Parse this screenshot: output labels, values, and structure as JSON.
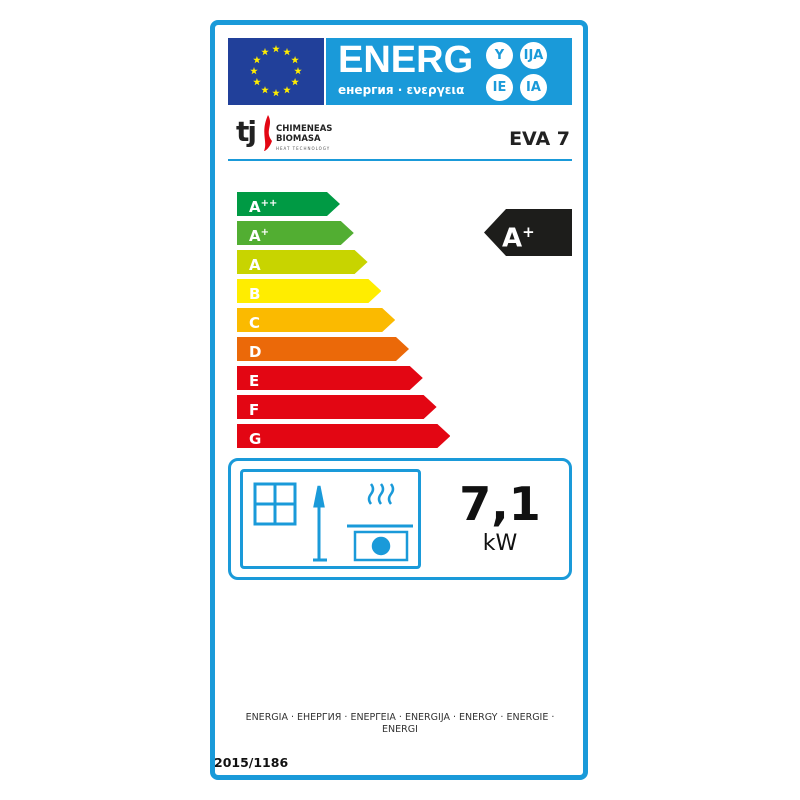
{
  "header": {
    "energy_word": "ENERG",
    "energy_subtitle": "енергия · ενεργεια",
    "suffixes": [
      "Y",
      "IJA",
      "IE",
      "IA"
    ],
    "brand_color": "#1a9ad9"
  },
  "supplier": {
    "logo_text": [
      "tj",
      "CHIMENEAS",
      "BIOMASA",
      "HEAT TECHNOLOGY"
    ],
    "model": "EVA 7"
  },
  "scale": [
    {
      "cls": "A",
      "sup": "++",
      "color": "#009a44"
    },
    {
      "cls": "A",
      "sup": "+",
      "color": "#52ae32"
    },
    {
      "cls": "A",
      "sup": "",
      "color": "#c8d400"
    },
    {
      "cls": "B",
      "sup": "",
      "color": "#ffed00"
    },
    {
      "cls": "C",
      "sup": "",
      "color": "#fbba00"
    },
    {
      "cls": "D",
      "sup": "",
      "color": "#eb6909"
    },
    {
      "cls": "E",
      "sup": "",
      "color": "#e30613"
    },
    {
      "cls": "F",
      "sup": "",
      "color": "#e30613"
    },
    {
      "cls": "G",
      "sup": "",
      "color": "#e30613"
    }
  ],
  "rating": {
    "cls": "A",
    "sup": "+"
  },
  "output": {
    "value": "7,1",
    "unit": "kW",
    "icons": [
      "window-icon",
      "lamp-icon",
      "heater-icon"
    ]
  },
  "footer": {
    "languages": "ENERGIA · ЕНЕРГИЯ · ΕΝΕΡΓΕΙΑ · ENERGIJA · ENERGY · ENERGIE · ENERGI",
    "regulation": "2015/1186"
  }
}
